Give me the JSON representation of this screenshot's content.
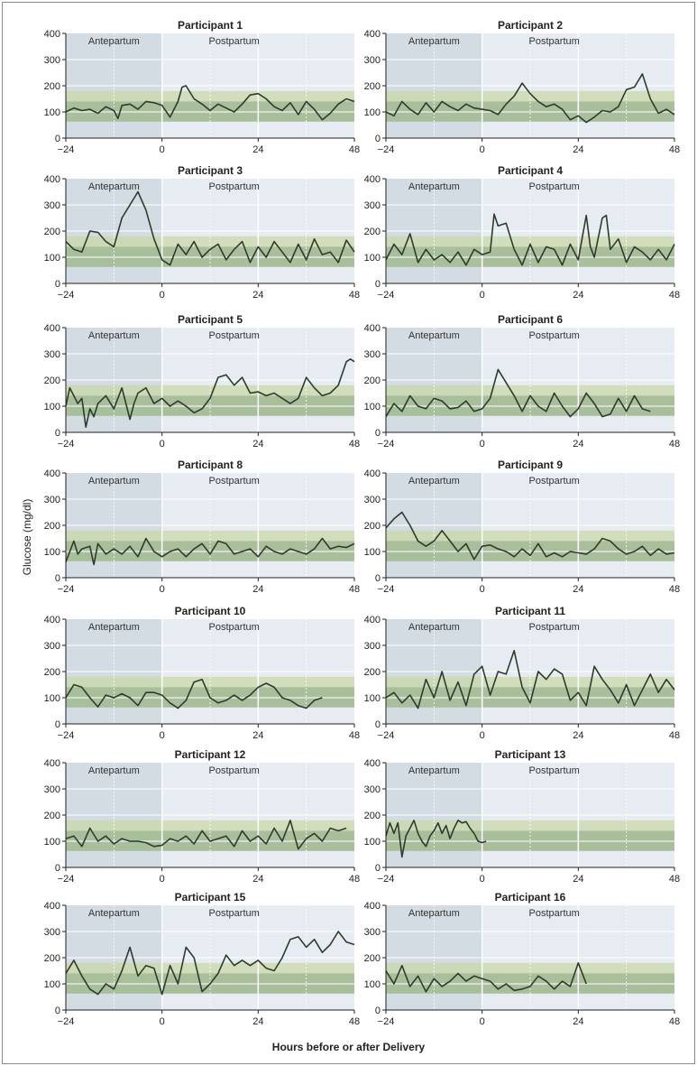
{
  "figure": {
    "ylabel": "Glucose (mg/dl)",
    "xlabel": "Hours before or after Delivery",
    "antepartum_label": "Antepartum",
    "postpartum_label": "Postpartum",
    "colors": {
      "antepartum_bg": "#d3dbe3",
      "postpartum_bg": "#e6ecf2",
      "target_outer_band": "#c9d8a8",
      "target_inner_band": "#9fb895",
      "trace": "#2f3b2d"
    }
  },
  "chart_data": [
    {
      "type": "line",
      "title": "Participant 1",
      "xlim": [
        -24,
        48
      ],
      "ylim": [
        0,
        400
      ],
      "xticks": [
        "-24",
        "0",
        "24",
        "48"
      ],
      "yticks": [
        "0",
        "100",
        "200",
        "300",
        "400"
      ],
      "x": [
        -24,
        -22,
        -20,
        -18,
        -16,
        -14,
        -12,
        -11,
        -10,
        -8,
        -6,
        -4,
        -2,
        0,
        2,
        4,
        5,
        6,
        8,
        10,
        12,
        14,
        16,
        18,
        20,
        22,
        24,
        26,
        28,
        30,
        32,
        34,
        36,
        38,
        40,
        42,
        44,
        46,
        48
      ],
      "y": [
        100,
        115,
        105,
        110,
        95,
        120,
        105,
        75,
        125,
        130,
        110,
        140,
        135,
        125,
        80,
        140,
        195,
        200,
        150,
        130,
        105,
        130,
        115,
        100,
        130,
        165,
        170,
        150,
        120,
        105,
        135,
        90,
        140,
        110,
        70,
        95,
        130,
        150,
        140
      ]
    },
    {
      "type": "line",
      "title": "Participant 2",
      "xlim": [
        -24,
        48
      ],
      "ylim": [
        0,
        400
      ],
      "xticks": [
        "-24",
        "0",
        "24",
        "48"
      ],
      "yticks": [
        "0",
        "100",
        "200",
        "300",
        "400"
      ],
      "x": [
        -24,
        -22,
        -20,
        -18,
        -16,
        -14,
        -12,
        -10,
        -8,
        -6,
        -4,
        -2,
        0,
        2,
        4,
        6,
        8,
        10,
        12,
        14,
        16,
        18,
        20,
        22,
        24,
        26,
        28,
        30,
        32,
        34,
        36,
        38,
        40,
        42,
        44,
        46,
        48
      ],
      "y": [
        100,
        85,
        140,
        110,
        90,
        135,
        100,
        140,
        120,
        105,
        130,
        115,
        110,
        105,
        90,
        130,
        160,
        210,
        170,
        140,
        120,
        130,
        110,
        70,
        85,
        60,
        80,
        105,
        100,
        120,
        185,
        195,
        245,
        150,
        95,
        110,
        90
      ]
    },
    {
      "type": "line",
      "title": "Participant 3",
      "xlim": [
        -24,
        48
      ],
      "ylim": [
        0,
        400
      ],
      "xticks": [
        "-24",
        "0",
        "24",
        "48"
      ],
      "yticks": [
        "0",
        "100",
        "200",
        "300",
        "400"
      ],
      "x": [
        -24,
        -22,
        -20,
        -18,
        -16,
        -14,
        -12,
        -10,
        -8,
        -6,
        -4,
        -2,
        0,
        2,
        4,
        6,
        8,
        10,
        12,
        14,
        16,
        18,
        20,
        22,
        24,
        26,
        28,
        30,
        32,
        34,
        36,
        38,
        40,
        42,
        44,
        46,
        48
      ],
      "y": [
        160,
        130,
        120,
        200,
        195,
        160,
        140,
        250,
        300,
        350,
        280,
        170,
        90,
        70,
        150,
        110,
        160,
        100,
        130,
        150,
        90,
        130,
        160,
        80,
        140,
        100,
        160,
        120,
        80,
        150,
        90,
        170,
        110,
        120,
        80,
        165,
        120
      ]
    },
    {
      "type": "line",
      "title": "Participant 4",
      "xlim": [
        -24,
        48
      ],
      "ylim": [
        0,
        400
      ],
      "xticks": [
        "-24",
        "0",
        "24",
        "48"
      ],
      "yticks": [
        "0",
        "100",
        "200",
        "300",
        "400"
      ],
      "x": [
        -24,
        -22,
        -20,
        -18,
        -16,
        -14,
        -12,
        -10,
        -8,
        -6,
        -4,
        -2,
        0,
        2,
        3,
        4,
        6,
        8,
        10,
        12,
        14,
        16,
        18,
        20,
        22,
        24,
        26,
        27,
        28,
        30,
        31,
        32,
        34,
        36,
        38,
        40,
        42,
        44,
        46,
        48
      ],
      "y": [
        90,
        150,
        110,
        190,
        80,
        130,
        90,
        110,
        80,
        120,
        70,
        130,
        110,
        120,
        265,
        220,
        230,
        130,
        70,
        150,
        80,
        140,
        130,
        70,
        150,
        90,
        260,
        140,
        100,
        250,
        260,
        130,
        170,
        80,
        140,
        120,
        90,
        130,
        90,
        150
      ]
    },
    {
      "type": "line",
      "title": "Participant 5",
      "xlim": [
        -24,
        48
      ],
      "ylim": [
        0,
        400
      ],
      "xticks": [
        "-24",
        "0",
        "24",
        "48"
      ],
      "yticks": [
        "0",
        "100",
        "200",
        "300",
        "400"
      ],
      "x": [
        -24,
        -23,
        -21,
        -20,
        -19,
        -18,
        -17,
        -16,
        -14,
        -12,
        -10,
        -8,
        -7,
        -6,
        -4,
        -2,
        0,
        2,
        4,
        6,
        8,
        10,
        12,
        14,
        16,
        18,
        20,
        22,
        24,
        26,
        28,
        30,
        32,
        34,
        36,
        38,
        40,
        42,
        44,
        46,
        47,
        48
      ],
      "y": [
        100,
        170,
        110,
        130,
        20,
        90,
        60,
        110,
        140,
        90,
        170,
        50,
        110,
        150,
        170,
        110,
        130,
        100,
        120,
        100,
        75,
        90,
        130,
        210,
        220,
        180,
        210,
        150,
        155,
        140,
        150,
        130,
        110,
        130,
        210,
        170,
        140,
        150,
        180,
        270,
        280,
        270
      ]
    },
    {
      "type": "line",
      "title": "Participant 6",
      "xlim": [
        -24,
        48
      ],
      "ylim": [
        0,
        400
      ],
      "xticks": [
        "-24",
        "0",
        "24",
        "48"
      ],
      "yticks": [
        "0",
        "100",
        "200",
        "300",
        "400"
      ],
      "x": [
        -24,
        -22,
        -20,
        -18,
        -16,
        -14,
        -12,
        -10,
        -8,
        -6,
        -4,
        -2,
        0,
        2,
        4,
        6,
        8,
        10,
        12,
        14,
        16,
        18,
        20,
        22,
        24,
        26,
        28,
        30,
        32,
        34,
        36,
        38,
        40,
        42
      ],
      "y": [
        60,
        110,
        80,
        140,
        100,
        90,
        130,
        120,
        90,
        95,
        120,
        80,
        90,
        130,
        240,
        190,
        140,
        80,
        140,
        100,
        80,
        150,
        100,
        60,
        90,
        150,
        110,
        60,
        70,
        130,
        80,
        140,
        90,
        80
      ]
    },
    {
      "type": "line",
      "title": "Participant 8",
      "xlim": [
        -24,
        48
      ],
      "ylim": [
        0,
        400
      ],
      "xticks": [
        "-24",
        "0",
        "24",
        "48"
      ],
      "yticks": [
        "0",
        "100",
        "200",
        "300",
        "400"
      ],
      "x": [
        -24,
        -22,
        -21,
        -20,
        -18,
        -17,
        -16,
        -14,
        -12,
        -10,
        -8,
        -6,
        -4,
        -2,
        0,
        2,
        4,
        6,
        8,
        10,
        12,
        14,
        16,
        18,
        20,
        22,
        24,
        26,
        28,
        30,
        32,
        34,
        36,
        38,
        40,
        42,
        44,
        46,
        48
      ],
      "y": [
        60,
        140,
        90,
        110,
        120,
        50,
        130,
        90,
        110,
        90,
        120,
        80,
        150,
        100,
        80,
        100,
        110,
        80,
        110,
        130,
        90,
        140,
        130,
        90,
        100,
        110,
        80,
        120,
        100,
        90,
        110,
        100,
        90,
        110,
        150,
        110,
        120,
        115,
        130
      ]
    },
    {
      "type": "line",
      "title": "Participant 9",
      "xlim": [
        -24,
        48
      ],
      "ylim": [
        0,
        400
      ],
      "xticks": [
        "-24",
        "0",
        "24",
        "48"
      ],
      "yticks": [
        "0",
        "100",
        "200",
        "300",
        "400"
      ],
      "x": [
        -24,
        -22,
        -20,
        -18,
        -16,
        -14,
        -12,
        -10,
        -8,
        -6,
        -4,
        -2,
        0,
        2,
        4,
        6,
        8,
        10,
        12,
        14,
        16,
        18,
        20,
        22,
        24,
        26,
        28,
        30,
        32,
        34,
        36,
        38,
        40,
        42,
        44,
        46,
        48
      ],
      "y": [
        190,
        225,
        250,
        200,
        140,
        120,
        140,
        180,
        140,
        100,
        130,
        70,
        120,
        125,
        110,
        100,
        80,
        110,
        85,
        130,
        80,
        95,
        80,
        100,
        95,
        90,
        110,
        150,
        140,
        110,
        90,
        100,
        120,
        85,
        110,
        90,
        95
      ]
    },
    {
      "type": "line",
      "title": "Participant 10",
      "xlim": [
        -24,
        48
      ],
      "ylim": [
        0,
        400
      ],
      "xticks": [
        "-24",
        "0",
        "24",
        "48"
      ],
      "yticks": [
        "0",
        "100",
        "200",
        "300",
        "400"
      ],
      "x": [
        -24,
        -22,
        -20,
        -18,
        -16,
        -14,
        -12,
        -10,
        -8,
        -6,
        -4,
        -2,
        0,
        2,
        4,
        6,
        8,
        10,
        12,
        14,
        16,
        18,
        20,
        22,
        24,
        26,
        28,
        30,
        32,
        34,
        36,
        38,
        40
      ],
      "y": [
        100,
        150,
        140,
        100,
        65,
        110,
        100,
        115,
        100,
        70,
        120,
        120,
        110,
        80,
        60,
        90,
        160,
        170,
        100,
        80,
        90,
        110,
        90,
        110,
        140,
        155,
        140,
        100,
        90,
        70,
        60,
        90,
        100
      ]
    },
    {
      "type": "line",
      "title": "Participant 11",
      "xlim": [
        -24,
        48
      ],
      "ylim": [
        0,
        400
      ],
      "xticks": [
        "-24",
        "0",
        "24",
        "48"
      ],
      "yticks": [
        "0",
        "100",
        "200",
        "300",
        "400"
      ],
      "x": [
        -24,
        -22,
        -20,
        -18,
        -16,
        -14,
        -12,
        -10,
        -8,
        -6,
        -4,
        -2,
        0,
        2,
        4,
        6,
        8,
        10,
        12,
        14,
        16,
        18,
        20,
        22,
        24,
        26,
        28,
        30,
        32,
        34,
        36,
        38,
        40,
        42,
        44,
        46,
        48
      ],
      "y": [
        100,
        120,
        80,
        110,
        60,
        170,
        100,
        200,
        90,
        160,
        70,
        190,
        220,
        110,
        200,
        190,
        280,
        140,
        80,
        200,
        170,
        210,
        190,
        90,
        120,
        70,
        220,
        170,
        130,
        80,
        150,
        70,
        130,
        190,
        120,
        170,
        130
      ]
    },
    {
      "type": "line",
      "title": "Participant 12",
      "xlim": [
        -24,
        48
      ],
      "ylim": [
        0,
        400
      ],
      "xticks": [
        "-24",
        "0",
        "24",
        "48"
      ],
      "yticks": [
        "0",
        "100",
        "200",
        "300",
        "400"
      ],
      "x": [
        -24,
        -22,
        -20,
        -18,
        -16,
        -14,
        -12,
        -10,
        -8,
        -6,
        -4,
        -2,
        0,
        2,
        4,
        6,
        8,
        10,
        12,
        14,
        16,
        18,
        20,
        22,
        24,
        26,
        28,
        30,
        32,
        34,
        36,
        38,
        40,
        42,
        44,
        46
      ],
      "y": [
        110,
        120,
        80,
        150,
        100,
        120,
        90,
        110,
        100,
        100,
        95,
        80,
        85,
        110,
        100,
        120,
        90,
        140,
        100,
        110,
        120,
        80,
        140,
        100,
        120,
        90,
        150,
        100,
        180,
        70,
        110,
        130,
        100,
        150,
        140,
        150
      ]
    },
    {
      "type": "line",
      "title": "Participant 13",
      "xlim": [
        -24,
        48
      ],
      "ylim": [
        0,
        400
      ],
      "xticks": [
        "-24",
        "0",
        "24",
        "48"
      ],
      "yticks": [
        "0",
        "100",
        "200",
        "300",
        "400"
      ],
      "x": [
        -24,
        -23,
        -22,
        -21,
        -20,
        -19,
        -18,
        -17,
        -16,
        -15,
        -14,
        -13,
        -12,
        -11,
        -10,
        -9,
        -8,
        -7,
        -6,
        -5,
        -4,
        -3,
        -2,
        -1,
        0,
        1
      ],
      "y": [
        120,
        170,
        130,
        170,
        40,
        120,
        150,
        180,
        130,
        100,
        80,
        120,
        140,
        170,
        130,
        160,
        110,
        150,
        180,
        170,
        175,
        150,
        130,
        100,
        95,
        100
      ]
    },
    {
      "type": "line",
      "title": "Participant 15",
      "xlim": [
        -24,
        48
      ],
      "ylim": [
        0,
        400
      ],
      "xticks": [
        "-24",
        "0",
        "24",
        "48"
      ],
      "yticks": [
        "0",
        "100",
        "200",
        "300",
        "400"
      ],
      "x": [
        -24,
        -22,
        -20,
        -18,
        -16,
        -14,
        -12,
        -10,
        -8,
        -6,
        -4,
        -2,
        0,
        2,
        4,
        6,
        8,
        10,
        12,
        14,
        16,
        18,
        20,
        22,
        24,
        26,
        28,
        30,
        32,
        34,
        36,
        38,
        40,
        42,
        44,
        46,
        48
      ],
      "y": [
        140,
        190,
        130,
        80,
        60,
        100,
        80,
        150,
        240,
        130,
        170,
        160,
        60,
        170,
        100,
        240,
        200,
        70,
        100,
        140,
        210,
        170,
        190,
        170,
        190,
        160,
        150,
        200,
        270,
        280,
        240,
        270,
        220,
        250,
        300,
        260,
        250
      ]
    },
    {
      "type": "line",
      "title": "Participant 16",
      "xlim": [
        -24,
        48
      ],
      "ylim": [
        0,
        400
      ],
      "xticks": [
        "-24",
        "0",
        "24",
        "48"
      ],
      "yticks": [
        "0",
        "100",
        "200",
        "300",
        "400"
      ],
      "x": [
        -24,
        -22,
        -20,
        -18,
        -16,
        -14,
        -12,
        -10,
        -8,
        -6,
        -4,
        -2,
        0,
        2,
        4,
        6,
        8,
        10,
        12,
        14,
        16,
        18,
        20,
        22,
        24,
        25,
        26
      ],
      "y": [
        150,
        100,
        170,
        90,
        130,
        70,
        120,
        90,
        110,
        140,
        110,
        130,
        120,
        110,
        80,
        100,
        75,
        80,
        90,
        130,
        110,
        80,
        110,
        90,
        180,
        140,
        100
      ]
    }
  ]
}
